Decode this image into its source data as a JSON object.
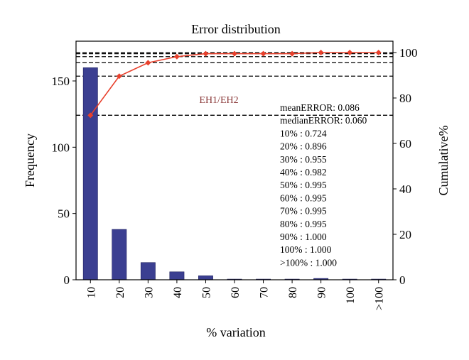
{
  "chart_data": {
    "type": "bar",
    "title": "Error distribution",
    "xlabel": "% variation",
    "ylabel": "Frequency",
    "y2label": "Cumulative%",
    "categories": [
      "10",
      "20",
      "30",
      "40",
      "50",
      "60",
      "70",
      "80",
      "90",
      "100",
      ">100"
    ],
    "ylim": [
      0,
      180
    ],
    "y2lim": [
      0,
      105
    ],
    "yticks": [
      0,
      50,
      100,
      150
    ],
    "y2ticks": [
      0,
      20,
      40,
      60,
      80,
      100
    ],
    "series": [
      {
        "kind": "bar",
        "axis": "left",
        "color": "#3b3f91",
        "values": [
          160,
          38,
          13,
          6,
          3,
          0.5,
          0.5,
          0.5,
          1,
          0.5,
          0.5
        ]
      },
      {
        "kind": "line",
        "axis": "right",
        "color": "#e8402c",
        "values": [
          72.4,
          89.6,
          95.5,
          98.2,
          99.5,
          99.5,
          99.5,
          99.5,
          100,
          100,
          100
        ]
      }
    ],
    "reference_lines": [
      72.4,
      89.6,
      95.5,
      98.2,
      99.5,
      100
    ],
    "grid": false,
    "annotations": {
      "label": "EH1/EH2",
      "lines": [
        "meanERROR: 0.086",
        "medianERROR: 0.060",
        "10% : 0.724",
        "20% : 0.896",
        "30% : 0.955",
        "40% : 0.982",
        "50% : 0.995",
        "60% : 0.995",
        "70% : 0.995",
        "80% : 0.995",
        "90% : 1.000",
        "100% : 1.000",
        ">100% : 1.000"
      ]
    },
    "colors": {
      "bar": "#3b3f91",
      "line": "#e8402c",
      "label": "#8b3a3a",
      "axis": "#000000"
    }
  }
}
